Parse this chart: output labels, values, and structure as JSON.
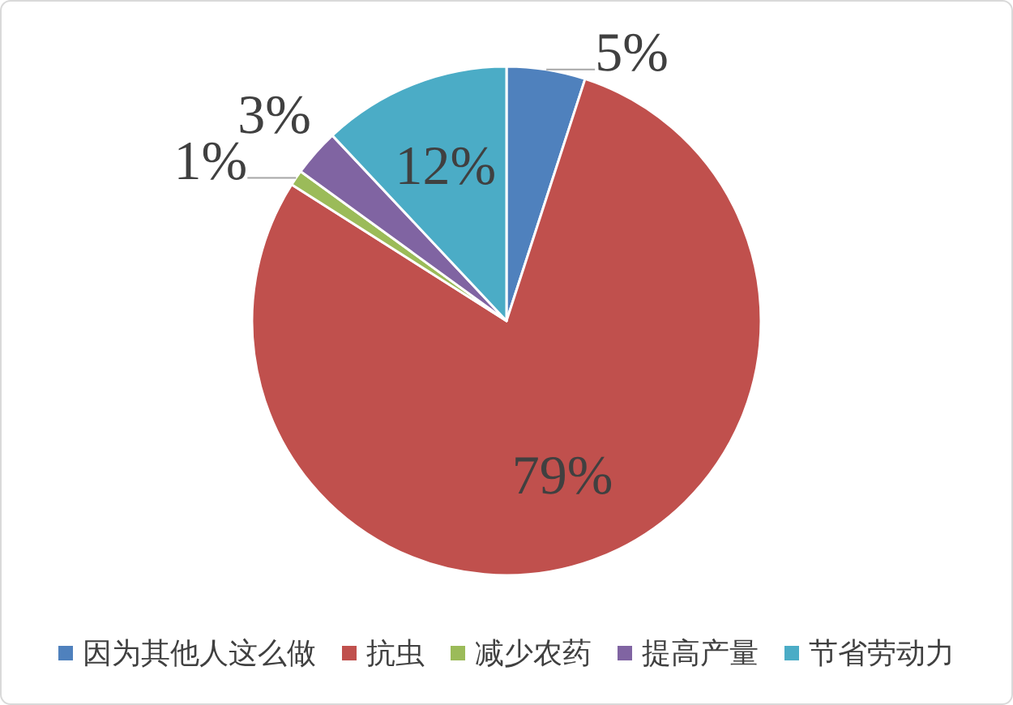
{
  "chart_data": {
    "type": "pie",
    "categories": [
      "因为其他人这么做",
      "抗虫",
      "减少农药",
      "提高产量",
      "节省劳动力"
    ],
    "values": [
      5,
      79,
      1,
      3,
      12
    ],
    "colors": [
      "#4f81bd",
      "#c0504d",
      "#9bbb59",
      "#8064a2",
      "#4bacc6"
    ],
    "value_labels": [
      "5%",
      "79%",
      "1%",
      "3%",
      "12%"
    ],
    "legend": "bottom"
  }
}
